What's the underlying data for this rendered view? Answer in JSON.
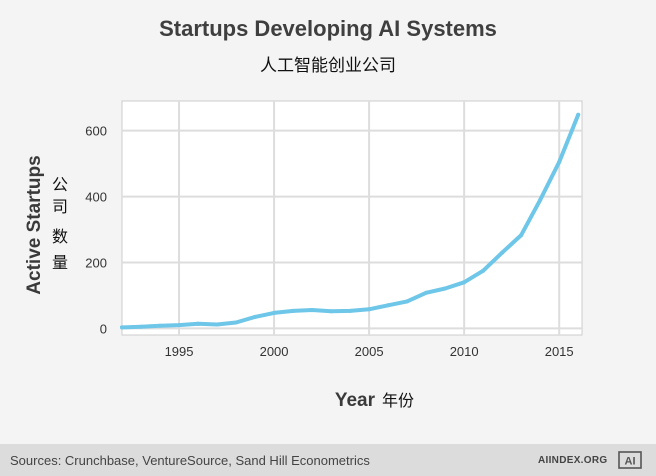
{
  "title": "Startups Developing AI Systems",
  "subtitle": "人工智能创业公司",
  "chart_data": {
    "type": "line",
    "title": "Startups Developing AI Systems",
    "subtitle": "人工智能创业公司",
    "xlabel": "Year",
    "xlabel_cn": "年份",
    "ylabel": "Active Startups",
    "ylabel_cn": "公司数量",
    "xlim": [
      1992,
      2016.2
    ],
    "ylim": [
      -20,
      690
    ],
    "xticks": [
      1995,
      2000,
      2005,
      2010,
      2015
    ],
    "yticks": [
      0,
      200,
      400,
      600
    ],
    "grid": true,
    "legend": "none",
    "series": [
      {
        "name": "Active Startups",
        "color": "#6ec6e8",
        "x": [
          1992,
          1993,
          1994,
          1995,
          1996,
          1997,
          1998,
          1999,
          2000,
          2001,
          2002,
          2003,
          2004,
          2005,
          2006,
          2007,
          2008,
          2009,
          2010,
          2011,
          2012,
          2013,
          2014,
          2015,
          2016
        ],
        "y": [
          3,
          5,
          8,
          10,
          14,
          12,
          18,
          35,
          47,
          53,
          56,
          52,
          53,
          58,
          70,
          82,
          108,
          121,
          140,
          175,
          230,
          283,
          390,
          505,
          648
        ]
      }
    ]
  },
  "footer": {
    "sources": "Sources: Crunchbase, VentureSource, Sand Hill Econometrics",
    "site": "AIINDEX.ORG",
    "logo_text": "AI"
  },
  "colors": {
    "background": "#f4f4f4",
    "plot_background": "#ffffff",
    "grid": "#dddddd",
    "line": "#6ec6e8",
    "footer": "#dcdcdc"
  }
}
